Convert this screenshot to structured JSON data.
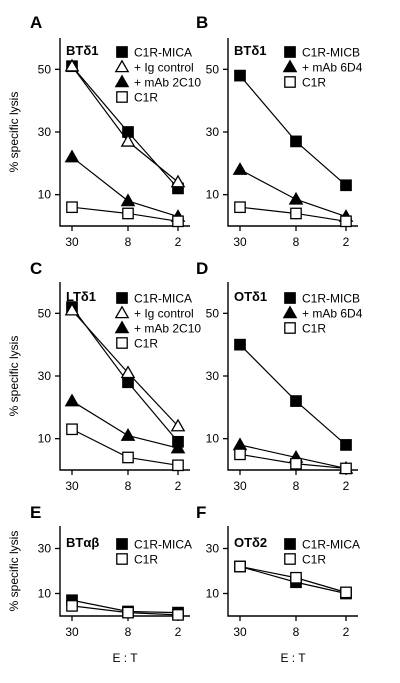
{
  "chart_data": [
    {
      "type": "line",
      "panel_label": "A",
      "title": "BTδ1",
      "x": [
        "30",
        "8",
        "2"
      ],
      "ylabel": "% specific lysis",
      "yticks": [
        10,
        30,
        50
      ],
      "ylim": [
        0,
        60
      ],
      "series": [
        {
          "name": "C1R-MICA",
          "marker": "filled-square",
          "values": [
            51,
            30,
            12
          ]
        },
        {
          "name": "+ Ig control",
          "marker": "open-triangle",
          "values": [
            51,
            27,
            14
          ]
        },
        {
          "name": "+ mAb 2C10",
          "marker": "filled-triangle",
          "values": [
            22,
            8,
            3
          ]
        },
        {
          "name": "C1R",
          "marker": "open-square",
          "values": [
            6,
            4,
            1.5
          ]
        }
      ]
    },
    {
      "type": "line",
      "panel_label": "B",
      "title": "BTδ1",
      "x": [
        "30",
        "8",
        "2"
      ],
      "yticks": [
        10,
        30,
        50
      ],
      "ylim": [
        0,
        60
      ],
      "series": [
        {
          "name": "C1R-MICB",
          "marker": "filled-square",
          "values": [
            48,
            27,
            13
          ]
        },
        {
          "name": "+ mAb 6D4",
          "marker": "filled-triangle",
          "values": [
            18,
            8.5,
            3
          ]
        },
        {
          "name": "C1R",
          "marker": "open-square",
          "values": [
            6,
            4,
            1.5
          ]
        }
      ]
    },
    {
      "type": "line",
      "panel_label": "C",
      "title": "LTδ1",
      "x": [
        "30",
        "8",
        "2"
      ],
      "ylabel": "% specific lysis",
      "yticks": [
        10,
        30,
        50
      ],
      "ylim": [
        0,
        60
      ],
      "series": [
        {
          "name": "C1R-MICA",
          "marker": "filled-square",
          "values": [
            52,
            28,
            9
          ]
        },
        {
          "name": "+ Ig control",
          "marker": "open-triangle",
          "values": [
            51,
            31,
            14
          ]
        },
        {
          "name": "+ mAb 2C10",
          "marker": "filled-triangle",
          "values": [
            22,
            11,
            7
          ]
        },
        {
          "name": "C1R",
          "marker": "open-square",
          "values": [
            13,
            4,
            1.5
          ]
        }
      ]
    },
    {
      "type": "line",
      "panel_label": "D",
      "title": "OTδ1",
      "x": [
        "30",
        "8",
        "2"
      ],
      "yticks": [
        10,
        30,
        50
      ],
      "ylim": [
        0,
        60
      ],
      "series": [
        {
          "name": "C1R-MICB",
          "marker": "filled-square",
          "values": [
            40,
            22,
            8
          ]
        },
        {
          "name": "+ mAb 6D4",
          "marker": "filled-triangle",
          "values": [
            8,
            4,
            0.5
          ]
        },
        {
          "name": "C1R",
          "marker": "open-square",
          "values": [
            5,
            2,
            0.5
          ]
        }
      ]
    },
    {
      "type": "line",
      "panel_label": "E",
      "title": "BTαβ",
      "x": [
        "30",
        "8",
        "2"
      ],
      "xlabel": "E : T",
      "ylabel": "% specific lysis",
      "yticks": [
        10,
        30
      ],
      "ylim": [
        0,
        40
      ],
      "series": [
        {
          "name": "C1R-MICA",
          "marker": "filled-square",
          "values": [
            7,
            2,
            1.5
          ]
        },
        {
          "name": "C1R",
          "marker": "open-square",
          "values": [
            4.5,
            1.5,
            0.5
          ]
        }
      ]
    },
    {
      "type": "line",
      "panel_label": "F",
      "title": "OTδ2",
      "x": [
        "30",
        "8",
        "2"
      ],
      "xlabel": "E : T",
      "yticks": [
        10,
        30
      ],
      "ylim": [
        0,
        40
      ],
      "series": [
        {
          "name": "C1R-MICA",
          "marker": "filled-square",
          "values": [
            22,
            15,
            10
          ]
        },
        {
          "name": "C1R",
          "marker": "open-square",
          "values": [
            22,
            17,
            10.5
          ]
        }
      ]
    }
  ]
}
